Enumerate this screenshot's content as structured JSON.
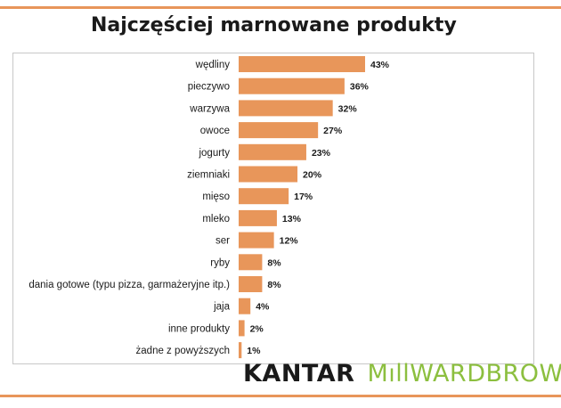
{
  "title": "Najczęściej marnowane produkty",
  "logo": {
    "kantar": "KANTAR",
    "millwardbrown": "MıllWARDBROWN"
  },
  "colors": {
    "bar": "#e8965a",
    "rule": "#e8965a",
    "text": "#1a1a1a",
    "frame": "#c8c8c8"
  },
  "chart_data": {
    "type": "bar",
    "orientation": "horizontal",
    "title": "Najczęściej marnowane produkty",
    "categories": [
      "wędliny",
      "pieczywo",
      "warzywa",
      "owoce",
      "jogurty",
      "ziemniaki",
      "mięso",
      "mleko",
      "ser",
      "ryby",
      "dania gotowe (typu pizza, garmażeryjne itp.)",
      "jaja",
      "inne produkty",
      "żadne z powyższych"
    ],
    "values": [
      43,
      36,
      32,
      27,
      23,
      20,
      17,
      13,
      12,
      8,
      8,
      4,
      2,
      1
    ],
    "value_labels": [
      "43%",
      "36%",
      "32%",
      "27%",
      "23%",
      "20%",
      "17%",
      "13%",
      "12%",
      "8%",
      "8%",
      "4%",
      "2%",
      "1%"
    ],
    "unit": "%",
    "xlim": [
      0,
      43
    ],
    "grid": false,
    "legend": "none"
  }
}
